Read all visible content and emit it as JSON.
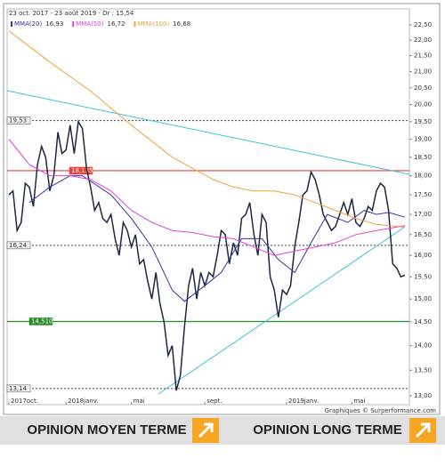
{
  "chart_data": {
    "type": "line",
    "log_scale": true,
    "title": "23 oct. 2017 - 23 août 2019 - Dr : 15,54",
    "credit": "Graphiques © Surperformance.com",
    "xlim": [
      0,
      97
    ],
    "xticks": [
      {
        "value": 0,
        "label": "2017oct."
      },
      {
        "value": 14,
        "label": "2018janv."
      },
      {
        "value": 30,
        "label": "mai"
      },
      {
        "value": 48,
        "label": "sept."
      },
      {
        "value": 68,
        "label": "2019janv."
      },
      {
        "value": 84,
        "label": "mai"
      }
    ],
    "ylim": [
      12.83,
      23.04
    ],
    "yticks": [
      {
        "value": 22.5,
        "label": "22,50"
      },
      {
        "value": 22,
        "label": "22,00"
      },
      {
        "value": 21.5,
        "label": "21,50"
      },
      {
        "value": 21,
        "label": "21,00"
      },
      {
        "value": 20.5,
        "label": "20,50"
      },
      {
        "value": 20,
        "label": "20,00"
      },
      {
        "value": 19.5,
        "label": "19,50"
      },
      {
        "value": 19,
        "label": "19,00"
      },
      {
        "value": 18.5,
        "label": "18,50"
      },
      {
        "value": 18,
        "label": "18,00"
      },
      {
        "value": 17.5,
        "label": "17,50"
      },
      {
        "value": 17,
        "label": "17,00"
      },
      {
        "value": 16.5,
        "label": "16,50"
      },
      {
        "value": 16,
        "label": "16,00"
      },
      {
        "value": 15.5,
        "label": "15,50"
      },
      {
        "value": 15,
        "label": "15,00"
      },
      {
        "value": 14.5,
        "label": "14,50"
      },
      {
        "value": 14,
        "label": "14,00"
      },
      {
        "value": 13.5,
        "label": "13,50"
      },
      {
        "value": 13,
        "label": "13,00"
      }
    ],
    "levels": [
      {
        "value": 19.53,
        "label": "19,53",
        "color": "#444",
        "dotted": true
      },
      {
        "value": 18.135,
        "label": "18,135",
        "color": "#e8423a",
        "dotted": false
      },
      {
        "value": 16.24,
        "label": "16,24",
        "color": "#444",
        "dotted": true
      },
      {
        "value": 14.51,
        "label": "14,510",
        "color": "#2a8a2a",
        "dotted": false
      },
      {
        "value": 13.14,
        "label": "13,14",
        "color": "#444",
        "dotted": true
      }
    ],
    "series": [
      {
        "name": "Cours",
        "color": "#1c2742",
        "x": [
          0,
          1,
          2,
          3,
          4,
          5,
          6,
          7,
          8,
          9,
          10,
          11,
          12,
          13,
          14,
          15,
          16,
          17,
          18,
          19,
          20,
          21,
          22,
          23,
          24,
          25,
          26,
          27,
          28,
          29,
          30,
          31,
          32,
          33,
          34,
          35,
          36,
          37,
          38,
          39,
          40,
          41,
          42,
          43,
          44,
          45,
          46,
          47,
          48,
          49,
          50,
          51,
          52,
          53,
          54,
          55,
          56,
          57,
          58,
          59,
          60,
          61,
          62,
          63,
          64,
          65,
          66,
          67,
          68,
          69,
          70,
          71,
          72,
          73,
          74,
          75,
          76,
          77,
          78,
          79,
          80,
          81,
          82,
          83,
          84,
          85,
          86,
          87,
          88,
          89,
          90,
          91,
          92,
          93,
          94,
          95,
          96,
          97
        ],
        "values": [
          17.5,
          17.6,
          16.6,
          16.8,
          17.8,
          17.7,
          17.2,
          18.3,
          18.8,
          18.5,
          17.6,
          18.0,
          19.2,
          18.6,
          18.7,
          19.4,
          18.6,
          19.5,
          19.3,
          18.2,
          17.7,
          17.1,
          17.3,
          16.9,
          16.8,
          17.0,
          16.4,
          16.0,
          16.8,
          16.6,
          16.2,
          16.5,
          15.8,
          15.9,
          15.4,
          15.0,
          15.6,
          14.9,
          14.5,
          13.8,
          14.0,
          13.1,
          13.4,
          14.4,
          15.3,
          15.7,
          15.0,
          15.6,
          15.3,
          15.6,
          15.5,
          16.0,
          16.6,
          16.5,
          15.8,
          16.3,
          16.0,
          16.9,
          17.0,
          17.3,
          16.5,
          16.0,
          17.0,
          16.8,
          15.5,
          15.2,
          14.6,
          15.2,
          15.1,
          15.3,
          16.2,
          16.8,
          17.5,
          17.6,
          18.1,
          17.9,
          17.5,
          17.0,
          16.8,
          16.6,
          16.7,
          17.0,
          17.3,
          17.0,
          17.4,
          16.8,
          16.7,
          16.9,
          17.2,
          17.1,
          17.6,
          17.8,
          17.7,
          17.1,
          15.8,
          15.7,
          15.5,
          15.54
        ]
      },
      {
        "name": "MMA(20)",
        "legend_value": "16,93",
        "color": "#3434a0",
        "x": [
          5,
          10,
          15,
          18,
          25,
          30,
          35,
          40,
          43,
          48,
          52,
          57,
          62,
          66,
          70,
          74,
          78,
          83,
          87,
          90,
          93,
          97
        ],
        "values": [
          17.3,
          17.7,
          18.0,
          18.0,
          17.5,
          16.9,
          16.2,
          15.2,
          14.95,
          15.3,
          15.6,
          16.4,
          16.4,
          15.9,
          15.6,
          16.3,
          17.0,
          16.8,
          17.1,
          17.0,
          17.05,
          16.93
        ]
      },
      {
        "name": "MMA(50)",
        "legend_value": "16,72",
        "color": "#e040e0",
        "x": [
          0,
          5,
          10,
          15,
          20,
          25,
          30,
          35,
          40,
          45,
          50,
          55,
          60,
          65,
          70,
          75,
          80,
          85,
          90,
          97
        ],
        "values": [
          19.0,
          18.3,
          18.0,
          18.0,
          17.9,
          17.6,
          17.1,
          16.8,
          16.6,
          16.55,
          16.45,
          16.4,
          16.2,
          16.0,
          16.1,
          16.2,
          16.3,
          16.5,
          16.6,
          16.72
        ]
      },
      {
        "name": "MMA(100)",
        "legend_value": "16,68",
        "color": "#f5a040",
        "x": [
          0,
          10,
          20,
          30,
          40,
          45,
          50,
          55,
          60,
          65,
          70,
          75,
          80,
          85,
          90,
          97
        ],
        "values": [
          22.3,
          21.3,
          20.4,
          19.4,
          18.5,
          18.2,
          17.9,
          17.7,
          17.6,
          17.6,
          17.5,
          17.3,
          17.1,
          16.9,
          16.75,
          16.68
        ]
      }
    ]
  },
  "buttons": [
    {
      "label": "OPINION MOYEN TERME"
    },
    {
      "label": "OPINION LONG TERME"
    }
  ]
}
